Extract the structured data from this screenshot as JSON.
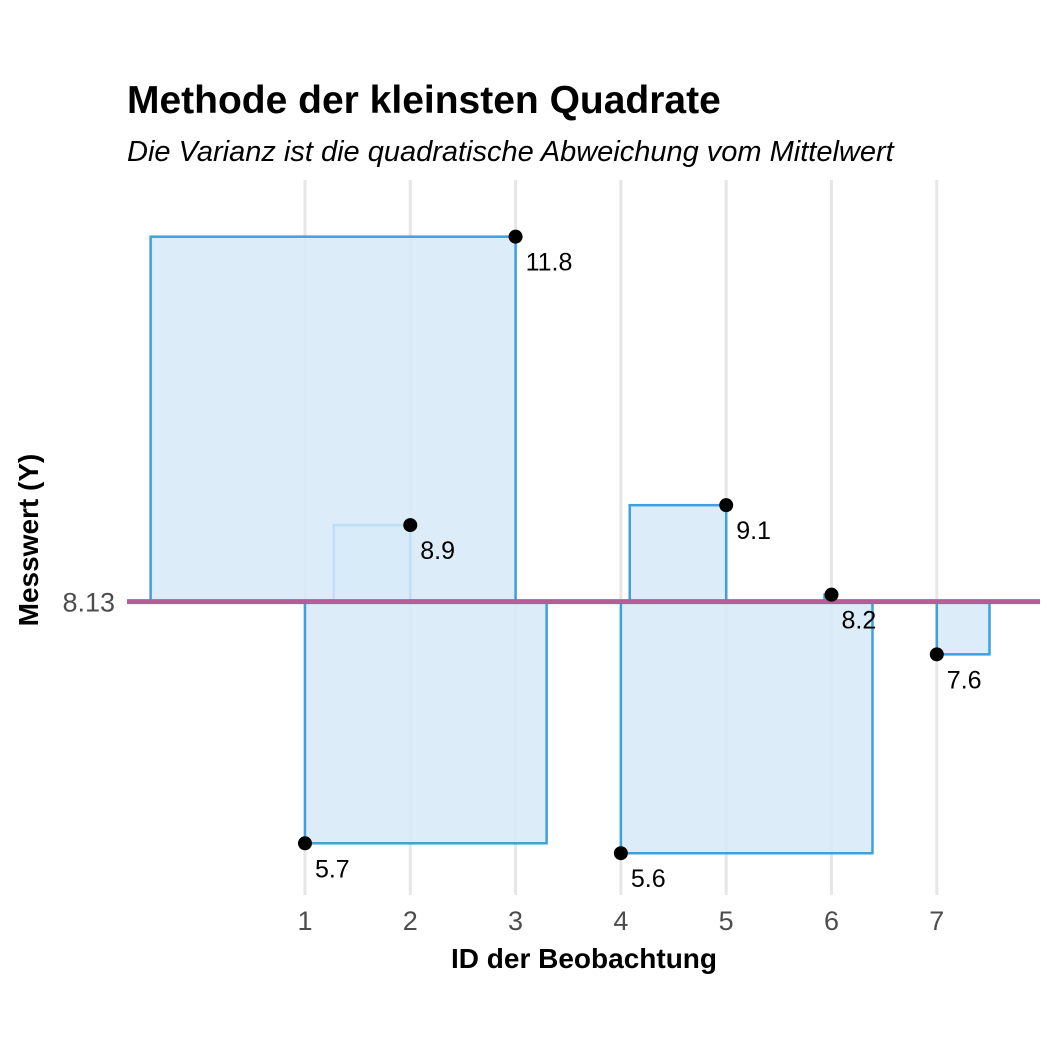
{
  "chart_data": {
    "type": "scatter",
    "title": "Methode der kleinsten Quadrate",
    "subtitle": "Die Varianz ist die quadratische Abweichung vom Mittelwert",
    "xlabel": "ID der Beobachtung",
    "ylabel": "Messwert (Y)",
    "x_ticks": [
      "1",
      "2",
      "3",
      "4",
      "5",
      "6",
      "7"
    ],
    "mean": 8.13,
    "mean_label": "8.13",
    "points": [
      {
        "x": 1,
        "y": 5.7,
        "label": "5.7"
      },
      {
        "x": 2,
        "y": 8.9,
        "label": "8.9"
      },
      {
        "x": 3,
        "y": 11.8,
        "label": "11.8"
      },
      {
        "x": 4,
        "y": 5.6,
        "label": "5.6"
      },
      {
        "x": 5,
        "y": 9.1,
        "label": "9.1"
      },
      {
        "x": 6,
        "y": 8.2,
        "label": "8.2"
      },
      {
        "x": 7,
        "y": 7.6,
        "label": "7.6"
      }
    ],
    "xlim": [
      -0.69,
      7.98
    ],
    "ylim": [
      5.18,
      12.37
    ],
    "grid": "vertical",
    "legend": "none",
    "colors": {
      "square_fill": "#d6eaf8",
      "square_stroke": "#3ea0dc",
      "mean_line": "#b85c97",
      "point": "#000000"
    }
  }
}
